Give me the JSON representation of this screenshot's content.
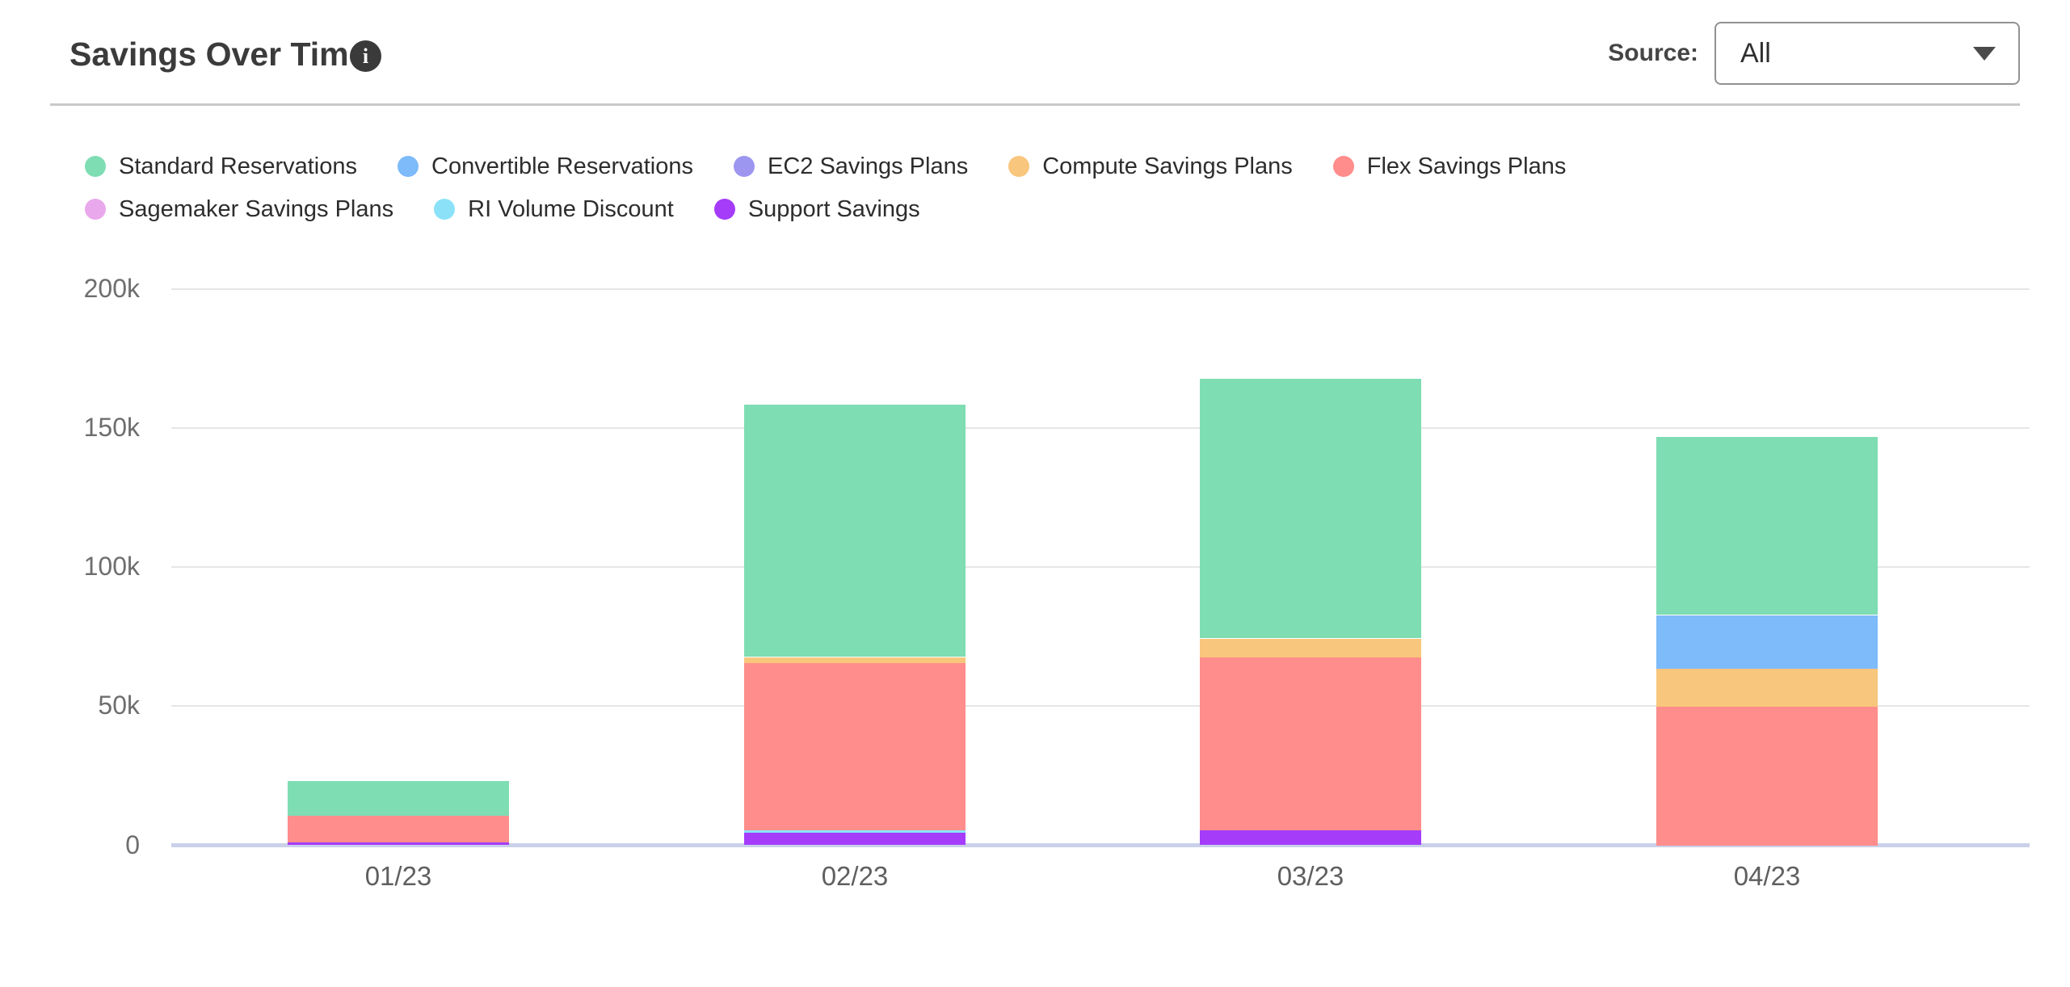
{
  "header": {
    "title": "Savings Over Time",
    "info_glyph": "i",
    "source_label": "Source:",
    "source_value": "All"
  },
  "chart_data": {
    "type": "bar",
    "stacked": true,
    "title": "Savings Over Time",
    "xlabel": "",
    "ylabel": "",
    "categories": [
      "01/23",
      "02/23",
      "03/23",
      "04/23"
    ],
    "series": [
      {
        "name": "Standard Reservations",
        "color": "#7EDDB3",
        "values": [
          12400,
          90700,
          93300,
          63900
        ]
      },
      {
        "name": "Convertible Reservations",
        "color": "#7DBBFA",
        "values": [
          0,
          0,
          0,
          19300
        ]
      },
      {
        "name": "EC2 Savings Plans",
        "color": "#9D96F0",
        "values": [
          0,
          0,
          0,
          0
        ]
      },
      {
        "name": "Compute Savings Plans",
        "color": "#F8C67C",
        "values": [
          0,
          2000,
          6800,
          13600
        ]
      },
      {
        "name": "Flex Savings Plans",
        "color": "#FF8D8B",
        "values": [
          9900,
          60200,
          62200,
          49800
        ]
      },
      {
        "name": "Sagemaker Savings Plans",
        "color": "#E9A8EC",
        "values": [
          0,
          0,
          0,
          0
        ]
      },
      {
        "name": "RI Volume Discount",
        "color": "#8BE2F8",
        "values": [
          0,
          1000,
          0,
          0
        ]
      },
      {
        "name": "Support Savings",
        "color": "#A43CFA",
        "values": [
          900,
          4400,
          5300,
          0
        ]
      }
    ],
    "totals": [
      23200,
      158300,
      167600,
      146600
    ],
    "yticks": [
      "0",
      "50k",
      "100k",
      "150k",
      "200k"
    ],
    "ytick_values": [
      0,
      50000,
      100000,
      150000,
      200000
    ],
    "ylim": [
      0,
      200000
    ],
    "grid": true,
    "legend_position": "top",
    "stack_order": "reverse-legend (Support Savings at bottom, Standard Reservations on top)"
  }
}
